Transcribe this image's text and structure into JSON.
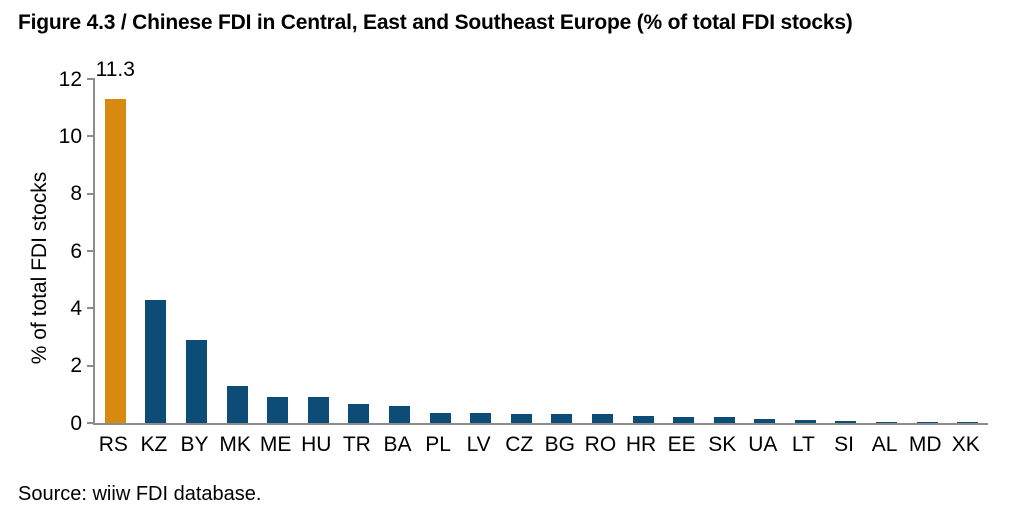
{
  "title": "Figure 4.3 / Chinese FDI in Central, East and Southeast Europe (% of total FDI stocks)",
  "source": "Source: wiiw FDI database.",
  "colors": {
    "highlight_bar": "#D8890F",
    "default_bar": "#0D4C77",
    "axis_line": "#8c8c8c",
    "text": "#000000"
  },
  "chart_data": {
    "type": "bar",
    "title": "Figure 4.3 / Chinese FDI in Central, East and Southeast Europe (% of total FDI stocks)",
    "xlabel": "",
    "ylabel": "% of total FDI stocks",
    "ylim": [
      0,
      12
    ],
    "yticks": [
      0,
      2,
      4,
      6,
      8,
      10,
      12
    ],
    "grid": false,
    "legend": "none",
    "categories": [
      "RS",
      "KZ",
      "BY",
      "MK",
      "ME",
      "HU",
      "TR",
      "BA",
      "PL",
      "LV",
      "CZ",
      "BG",
      "RO",
      "HR",
      "EE",
      "SK",
      "UA",
      "LT",
      "SI",
      "AL",
      "MD",
      "XK"
    ],
    "values": [
      11.3,
      4.3,
      2.9,
      1.3,
      0.9,
      0.9,
      0.65,
      0.6,
      0.35,
      0.35,
      0.3,
      0.3,
      0.3,
      0.25,
      0.2,
      0.2,
      0.15,
      0.12,
      0.06,
      0.05,
      0.03,
      0.01
    ],
    "highlight_index": 0,
    "data_labels": [
      {
        "index": 0,
        "text": "11.3"
      }
    ]
  }
}
